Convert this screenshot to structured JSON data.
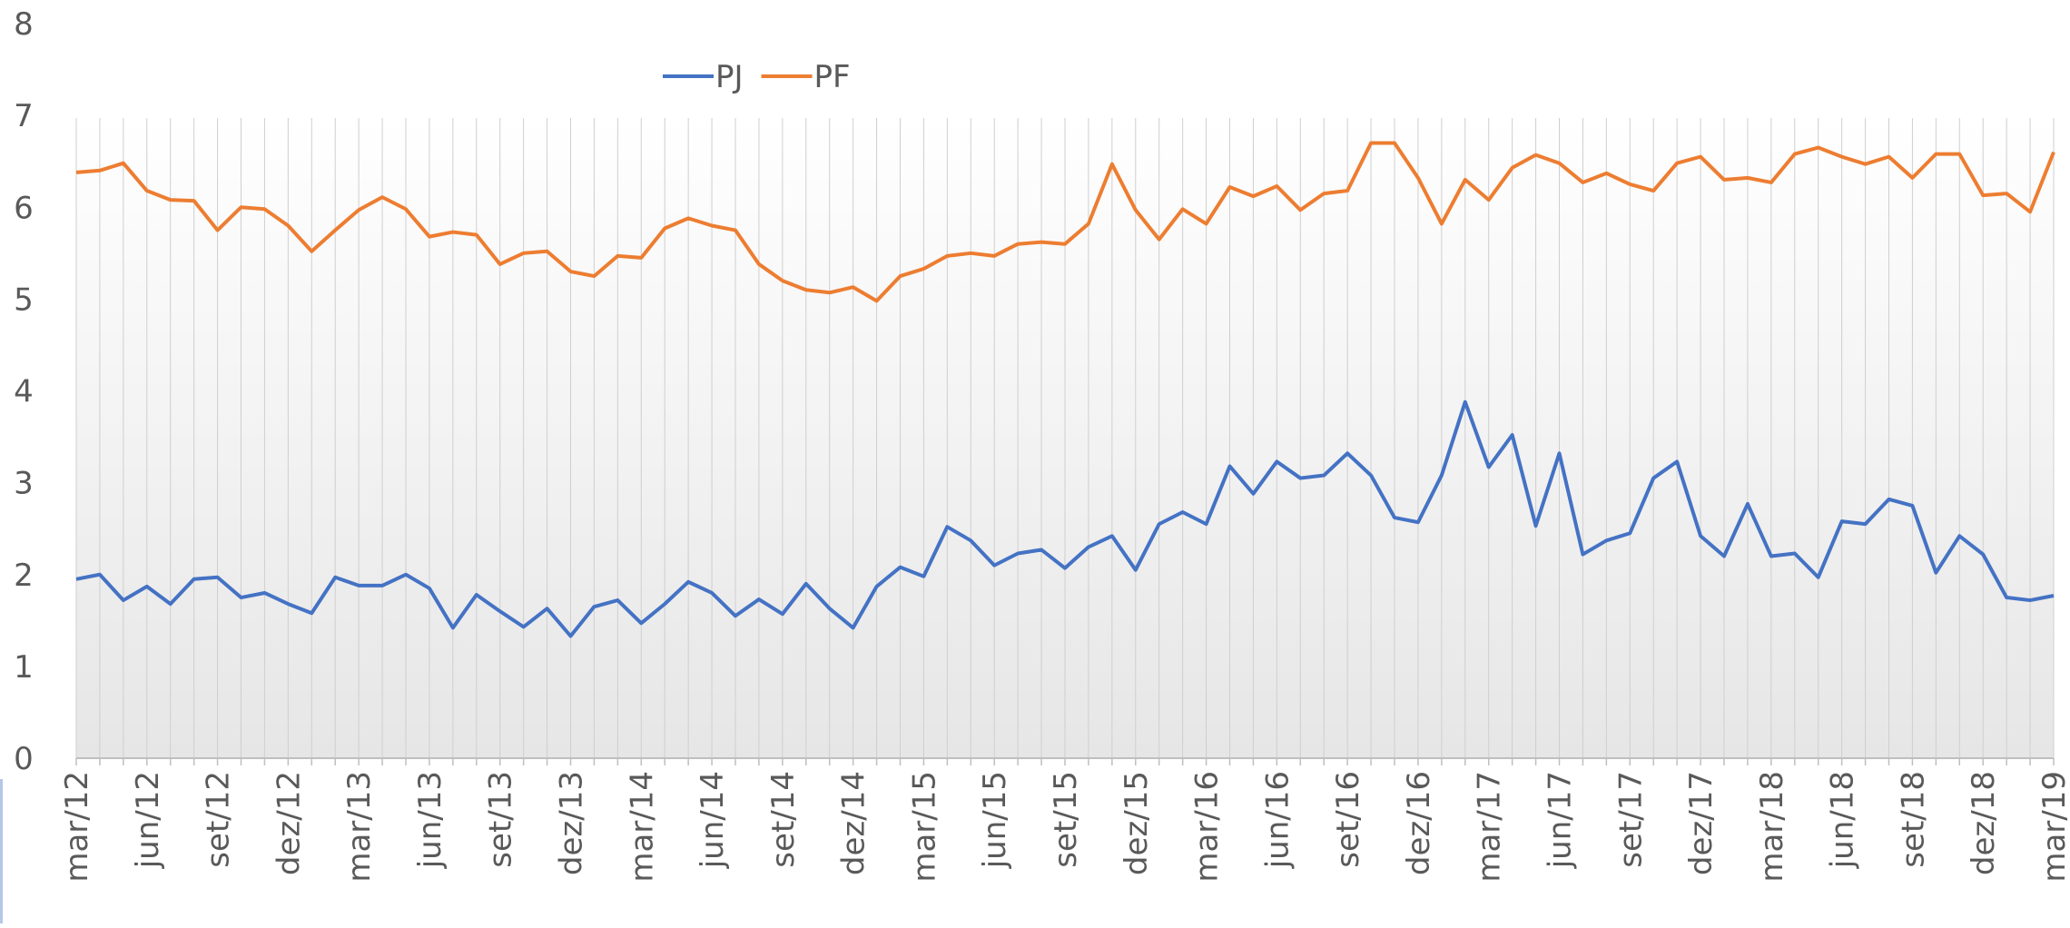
{
  "chart_data": {
    "type": "line",
    "categories": [
      "mar/12",
      null,
      null,
      "jun/12",
      null,
      null,
      "set/12",
      null,
      null,
      "dez/12",
      null,
      null,
      "mar/13",
      null,
      null,
      "jun/13",
      null,
      null,
      "set/13",
      null,
      null,
      "dez/13",
      null,
      null,
      "mar/14",
      null,
      null,
      "jun/14",
      null,
      null,
      "set/14",
      null,
      null,
      "dez/14",
      null,
      null,
      "mar/15",
      null,
      null,
      "jun/15",
      null,
      null,
      "set/15",
      null,
      null,
      "dez/15",
      null,
      null,
      "mar/16",
      null,
      null,
      "jun/16",
      null,
      null,
      "set/16",
      null,
      null,
      "dez/16",
      null,
      null,
      "mar/17",
      null,
      null,
      "jun/17",
      null,
      null,
      "set/17",
      null,
      null,
      "dez/17",
      null,
      null,
      "mar/18",
      null,
      null,
      "jun/18",
      null,
      null,
      "set/18",
      null,
      null,
      "dez/18",
      null,
      null,
      "mar/19"
    ],
    "series": [
      {
        "name": "PJ",
        "color": "#4472c4",
        "values": [
          1.95,
          2.0,
          1.72,
          1.87,
          1.68,
          1.95,
          1.97,
          1.75,
          1.8,
          1.68,
          1.58,
          1.97,
          1.88,
          1.88,
          2.0,
          1.85,
          1.42,
          1.78,
          1.6,
          1.43,
          1.63,
          1.33,
          1.65,
          1.72,
          1.47,
          1.68,
          1.92,
          1.8,
          1.55,
          1.73,
          1.57,
          1.9,
          1.63,
          1.42,
          1.87,
          2.08,
          1.98,
          2.52,
          2.37,
          2.1,
          2.23,
          2.27,
          2.07,
          2.3,
          2.42,
          2.05,
          2.55,
          2.68,
          2.55,
          3.18,
          2.88,
          3.23,
          3.05,
          3.08,
          3.32,
          3.08,
          2.62,
          2.57,
          3.08,
          3.88,
          3.17,
          3.52,
          2.53,
          3.32,
          2.22,
          2.37,
          2.45,
          3.05,
          3.23,
          2.42,
          2.2,
          2.77,
          2.2,
          2.23,
          1.97,
          2.58,
          2.55,
          2.82,
          2.75,
          2.02,
          2.42,
          2.22,
          1.75,
          1.72,
          1.77
        ]
      },
      {
        "name": "PF",
        "color": "#ed7d31",
        "values": [
          6.38,
          6.4,
          6.48,
          6.18,
          6.08,
          6.07,
          5.75,
          6.0,
          5.98,
          5.8,
          5.52,
          5.75,
          5.97,
          6.11,
          5.98,
          5.68,
          5.73,
          5.7,
          5.38,
          5.5,
          5.52,
          5.3,
          5.25,
          5.47,
          5.45,
          5.77,
          5.88,
          5.8,
          5.75,
          5.38,
          5.2,
          5.1,
          5.07,
          5.13,
          4.98,
          5.25,
          5.33,
          5.47,
          5.5,
          5.47,
          5.6,
          5.62,
          5.6,
          5.82,
          6.47,
          5.97,
          5.65,
          5.98,
          5.82,
          6.22,
          6.12,
          6.23,
          5.97,
          6.15,
          6.18,
          6.7,
          6.7,
          6.32,
          5.82,
          6.3,
          6.08,
          6.43,
          6.57,
          6.48,
          6.27,
          6.37,
          6.25,
          6.18,
          6.48,
          6.55,
          6.3,
          6.32,
          6.27,
          6.58,
          6.65,
          6.55,
          6.47,
          6.55,
          6.32,
          6.58,
          6.58,
          6.13,
          6.15,
          5.95,
          6.6
        ]
      }
    ],
    "ylim": [
      0,
      8
    ],
    "yticks": [
      0,
      1,
      2,
      3,
      4,
      5,
      6,
      7,
      8
    ],
    "legend": "top"
  }
}
